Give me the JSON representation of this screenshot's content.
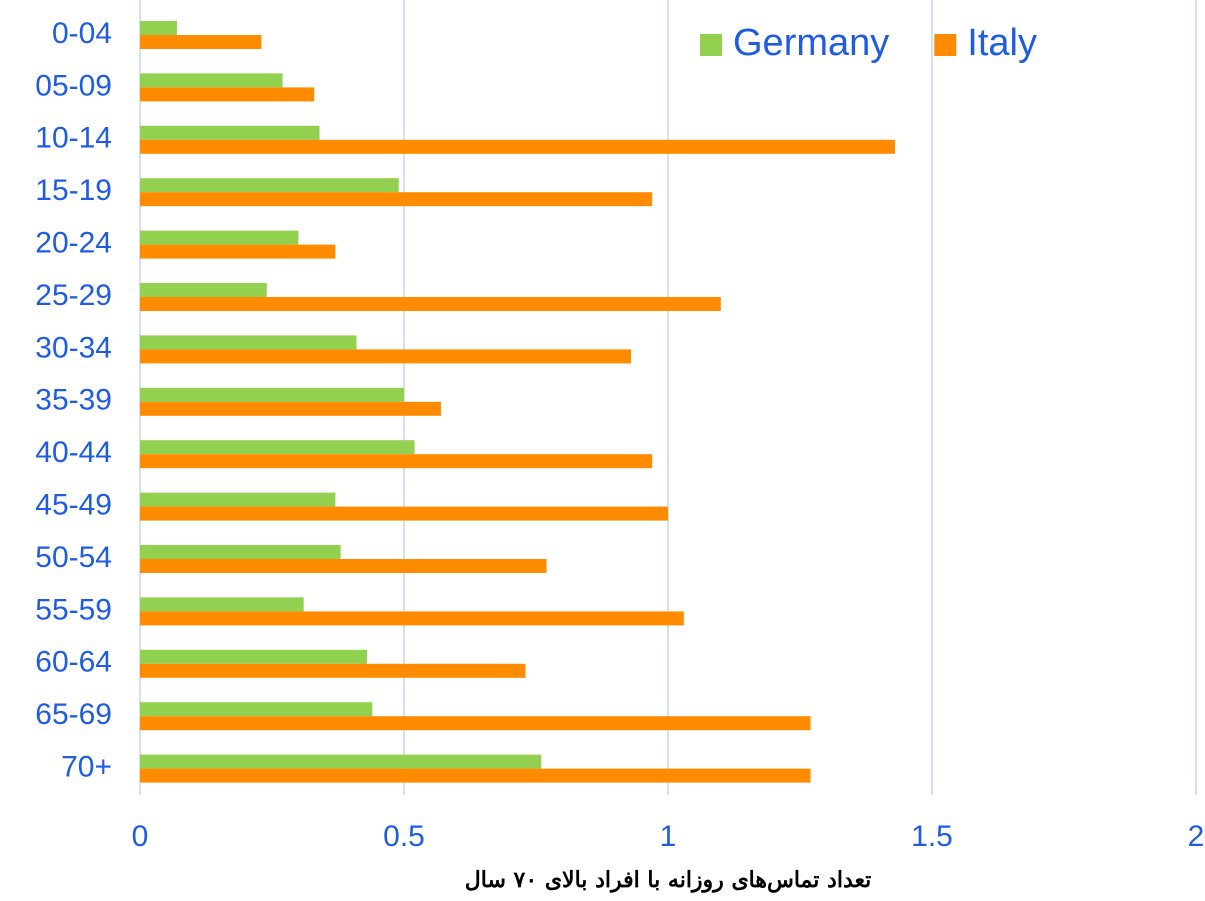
{
  "chart_data": {
    "type": "hbar",
    "xlabel": "تعداد تماس‌های روزانه با افراد بالای ۷۰ سال",
    "categories": [
      "0-04",
      "05-09",
      "10-14",
      "15-19",
      "20-24",
      "25-29",
      "30-34",
      "35-39",
      "40-44",
      "45-49",
      "50-54",
      "55-59",
      "60-64",
      "65-69",
      "70+"
    ],
    "series": [
      {
        "name": "Germany",
        "color": "#92d050",
        "values": [
          0.07,
          0.27,
          0.34,
          0.49,
          0.3,
          0.24,
          0.41,
          0.5,
          0.52,
          0.37,
          0.38,
          0.31,
          0.43,
          0.44,
          0.76
        ]
      },
      {
        "name": "Italy",
        "color": "#ff8c00",
        "values": [
          0.23,
          0.33,
          1.43,
          0.97,
          0.37,
          1.1,
          0.93,
          0.57,
          0.97,
          1.0,
          0.77,
          1.03,
          0.73,
          1.27,
          1.27
        ]
      }
    ],
    "xlim": [
      0,
      2
    ],
    "xticks": [
      0,
      0.5,
      1,
      1.5,
      2
    ],
    "grid": true,
    "legend": "top-right"
  }
}
